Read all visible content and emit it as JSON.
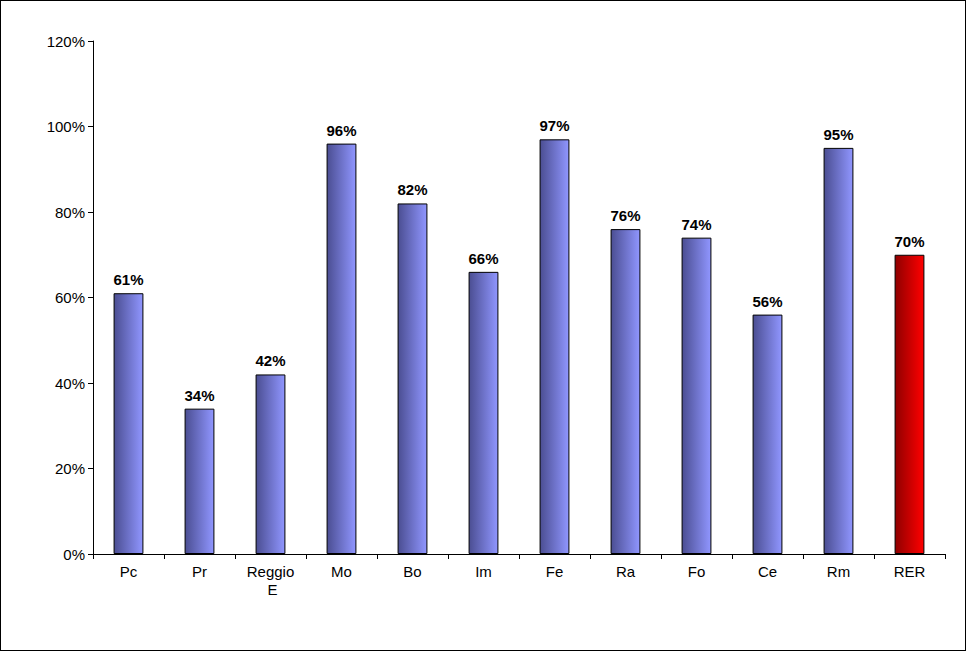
{
  "chart_data": {
    "type": "bar",
    "categories": [
      "Pc",
      "Pr",
      "Reggio E",
      "Mo",
      "Bo",
      "Im",
      "Fe",
      "Ra",
      "Fo",
      "Ce",
      "Rm",
      "RER"
    ],
    "values": [
      61,
      34,
      42,
      96,
      82,
      66,
      97,
      76,
      74,
      56,
      95,
      70
    ],
    "value_labels": [
      "61%",
      "34%",
      "42%",
      "96%",
      "82%",
      "66%",
      "97%",
      "76%",
      "74%",
      "56%",
      "95%",
      "70%"
    ],
    "colors": [
      "#6b6fd0",
      "#6b6fd0",
      "#6b6fd0",
      "#6b6fd0",
      "#6b6fd0",
      "#6b6fd0",
      "#6b6fd0",
      "#6b6fd0",
      "#6b6fd0",
      "#6b6fd0",
      "#6b6fd0",
      "#cc0000"
    ],
    "ylim": [
      0,
      120
    ],
    "yticks": [
      {
        "value": 0,
        "label": "0%"
      },
      {
        "value": 20,
        "label": "20%"
      },
      {
        "value": 40,
        "label": "40%"
      },
      {
        "value": 60,
        "label": "60%"
      },
      {
        "value": 80,
        "label": "80%"
      },
      {
        "value": 100,
        "label": "100%"
      },
      {
        "value": 120,
        "label": "120%"
      }
    ],
    "data_labels": true,
    "grid": false
  }
}
